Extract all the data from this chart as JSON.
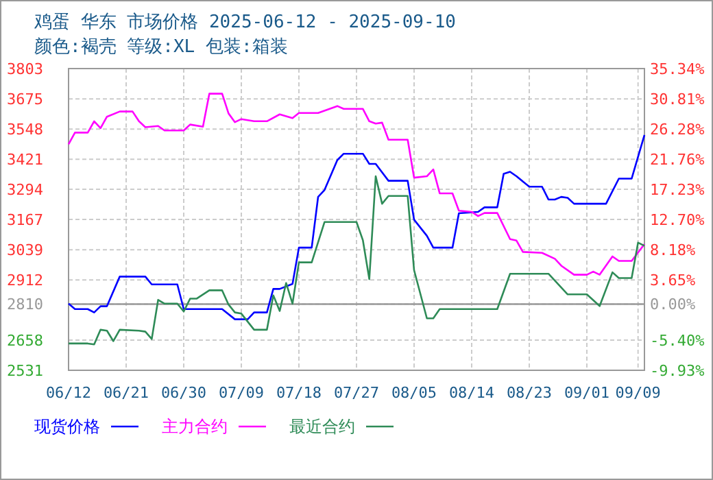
{
  "chart_data": {
    "type": "line",
    "title": "鸡蛋 华东 市场价格 2025-06-12 - 2025-09-10",
    "subtitle": "颜色:褐壳 等级:XL 包装:箱装",
    "xlim": [
      "2025-06-12",
      "2025-09-10"
    ],
    "xticks": [
      {
        "value": "2025-06-12",
        "label": "06/12"
      },
      {
        "value": "2025-06-21",
        "label": "06/21"
      },
      {
        "value": "2025-06-30",
        "label": "06/30"
      },
      {
        "value": "2025-07-09",
        "label": "07/09"
      },
      {
        "value": "2025-07-18",
        "label": "07/18"
      },
      {
        "value": "2025-07-27",
        "label": "07/27"
      },
      {
        "value": "2025-08-05",
        "label": "08/05"
      },
      {
        "value": "2025-08-14",
        "label": "08/14"
      },
      {
        "value": "2025-08-23",
        "label": "08/23"
      },
      {
        "value": "2025-09-01",
        "label": "09/01"
      },
      {
        "value": "2025-09-09",
        "label": "09/09"
      }
    ],
    "ylim": [
      2531,
      3803
    ],
    "yticks": [
      3803,
      3675,
      3548,
      3421,
      3294,
      3167,
      3039,
      2912,
      2810,
      2658,
      2531
    ],
    "y2lim": [
      -9.93,
      35.34
    ],
    "y2ticks": [
      {
        "value": 35.34,
        "label": "35.34%"
      },
      {
        "value": 30.81,
        "label": "30.81%"
      },
      {
        "value": 26.28,
        "label": "26.28%"
      },
      {
        "value": 21.76,
        "label": "21.76%"
      },
      {
        "value": 17.23,
        "label": "17.23%"
      },
      {
        "value": 12.7,
        "label": "12.70%"
      },
      {
        "value": 8.18,
        "label": "8.18%"
      },
      {
        "value": 3.65,
        "label": "3.65%"
      },
      {
        "value": 0,
        "label": "0.00%"
      },
      {
        "value": -5.4,
        "label": "-5.40%"
      },
      {
        "value": -9.93,
        "label": "-9.93%"
      }
    ],
    "ref_lines": [
      {
        "axis": "y",
        "value": 2810,
        "color": "#999999"
      }
    ],
    "grid": true,
    "legend": "bottom",
    "marker": "none",
    "line_style": "solid",
    "series": [
      {
        "name": "现货价格",
        "color": "#0000ff",
        "x": [
          "2025-06-12",
          "2025-06-13",
          "2025-06-15",
          "2025-06-16",
          "2025-06-17",
          "2025-06-18",
          "2025-06-20",
          "2025-06-24",
          "2025-06-25",
          "2025-06-29",
          "2025-06-30",
          "2025-07-06",
          "2025-07-08",
          "2025-07-10",
          "2025-07-11",
          "2025-07-13",
          "2025-07-14",
          "2025-07-15",
          "2025-07-17",
          "2025-07-18",
          "2025-07-20",
          "2025-07-21",
          "2025-07-22",
          "2025-07-24",
          "2025-07-25",
          "2025-07-28",
          "2025-07-29",
          "2025-07-30",
          "2025-08-01",
          "2025-08-04",
          "2025-08-05",
          "2025-08-07",
          "2025-08-08",
          "2025-08-11",
          "2025-08-12",
          "2025-08-15",
          "2025-08-16",
          "2025-08-18",
          "2025-08-19",
          "2025-08-20",
          "2025-08-21",
          "2025-08-23",
          "2025-08-25",
          "2025-08-26",
          "2025-08-27",
          "2025-08-28",
          "2025-08-29",
          "2025-08-30",
          "2025-09-04",
          "2025-09-06",
          "2025-09-08",
          "2025-09-10"
        ],
        "values": [
          2812,
          2789,
          2789,
          2775,
          2801,
          2801,
          2926,
          2926,
          2893,
          2893,
          2789,
          2789,
          2746,
          2746,
          2775,
          2775,
          2874,
          2874,
          2895,
          3048,
          3048,
          3262,
          3291,
          3417,
          3444,
          3444,
          3401,
          3401,
          3330,
          3330,
          3166,
          3098,
          3048,
          3048,
          3193,
          3199,
          3218,
          3218,
          3359,
          3368,
          3349,
          3305,
          3305,
          3251,
          3251,
          3262,
          3258,
          3233,
          3233,
          3339,
          3339,
          3523
        ]
      },
      {
        "name": "主力合约",
        "color": "#ff00ff",
        "x": [
          "2025-06-12",
          "2025-06-13",
          "2025-06-15",
          "2025-06-16",
          "2025-06-17",
          "2025-06-18",
          "2025-06-20",
          "2025-06-22",
          "2025-06-23",
          "2025-06-24",
          "2025-06-26",
          "2025-06-27",
          "2025-06-30",
          "2025-07-01",
          "2025-07-03",
          "2025-07-04",
          "2025-07-06",
          "2025-07-07",
          "2025-07-08",
          "2025-07-09",
          "2025-07-11",
          "2025-07-13",
          "2025-07-15",
          "2025-07-17",
          "2025-07-18",
          "2025-07-21",
          "2025-07-24",
          "2025-07-25",
          "2025-07-28",
          "2025-07-29",
          "2025-07-30",
          "2025-07-31",
          "2025-08-01",
          "2025-08-04",
          "2025-08-05",
          "2025-08-07",
          "2025-08-08",
          "2025-08-09",
          "2025-08-11",
          "2025-08-12",
          "2025-08-14",
          "2025-08-15",
          "2025-08-16",
          "2025-08-18",
          "2025-08-20",
          "2025-08-21",
          "2025-08-22",
          "2025-08-25",
          "2025-08-27",
          "2025-08-28",
          "2025-08-30",
          "2025-09-01",
          "2025-09-02",
          "2025-09-03",
          "2025-09-05",
          "2025-09-06",
          "2025-09-08",
          "2025-09-10"
        ],
        "values": [
          3484,
          3533,
          3533,
          3581,
          3552,
          3600,
          3622,
          3622,
          3581,
          3556,
          3561,
          3542,
          3542,
          3567,
          3558,
          3697,
          3697,
          3614,
          3577,
          3590,
          3581,
          3581,
          3610,
          3594,
          3616,
          3616,
          3645,
          3633,
          3633,
          3581,
          3571,
          3575,
          3503,
          3503,
          3343,
          3349,
          3378,
          3277,
          3277,
          3204,
          3199,
          3181,
          3194,
          3194,
          3084,
          3078,
          3030,
          3026,
          3001,
          2972,
          2934,
          2934,
          2947,
          2934,
          3011,
          2992,
          2992,
          3063
        ]
      },
      {
        "name": "最近合约",
        "color": "#2e8b57",
        "x": [
          "2025-06-12",
          "2025-06-15",
          "2025-06-16",
          "2025-06-17",
          "2025-06-18",
          "2025-06-19",
          "2025-06-20",
          "2025-06-23",
          "2025-06-24",
          "2025-06-25",
          "2025-06-26",
          "2025-06-27",
          "2025-06-29",
          "2025-06-30",
          "2025-07-01",
          "2025-07-02",
          "2025-07-04",
          "2025-07-06",
          "2025-07-07",
          "2025-07-08",
          "2025-07-09",
          "2025-07-11",
          "2025-07-13",
          "2025-07-14",
          "2025-07-15",
          "2025-07-16",
          "2025-07-17",
          "2025-07-18",
          "2025-07-20",
          "2025-07-22",
          "2025-07-27",
          "2025-07-28",
          "2025-07-29",
          "2025-07-30",
          "2025-07-31",
          "2025-08-01",
          "2025-08-04",
          "2025-08-05",
          "2025-08-07",
          "2025-08-08",
          "2025-08-09",
          "2025-08-18",
          "2025-08-20",
          "2025-08-26",
          "2025-08-29",
          "2025-09-01",
          "2025-09-03",
          "2025-09-05",
          "2025-09-06",
          "2025-09-08",
          "2025-09-09",
          "2025-09-10"
        ],
        "values": [
          2644,
          2644,
          2640,
          2702,
          2698,
          2654,
          2702,
          2698,
          2694,
          2663,
          2828,
          2812,
          2812,
          2779,
          2833,
          2833,
          2868,
          2868,
          2808,
          2775,
          2770,
          2702,
          2702,
          2847,
          2781,
          2899,
          2812,
          2986,
          2986,
          3156,
          3156,
          3079,
          2915,
          3349,
          3233,
          3266,
          3266,
          2953,
          2750,
          2750,
          2789,
          2789,
          2938,
          2938,
          2851,
          2851,
          2802,
          2944,
          2920,
          2920,
          3069,
          3056
        ]
      }
    ]
  }
}
